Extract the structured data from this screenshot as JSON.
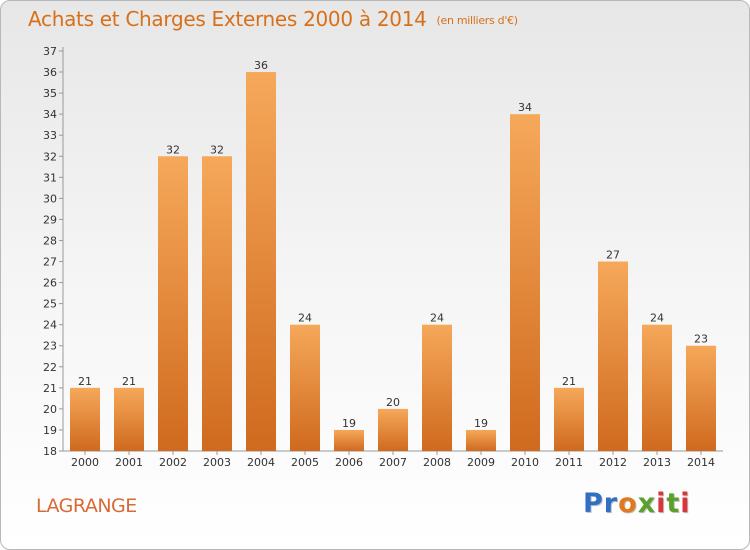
{
  "title": "Achats et Charges Externes 2000 à 2014",
  "unit_note": "(en milliers d'€)",
  "commune": "LAGRANGE",
  "logo": {
    "text": "Proxiti",
    "letters": [
      {
        "ch": "P",
        "color": "#2f6fc4"
      },
      {
        "ch": "r",
        "color": "#2f6fc4"
      },
      {
        "ch": "o",
        "color": "#e07a1e"
      },
      {
        "ch": "x",
        "color": "#5aa02c"
      },
      {
        "ch": "i",
        "color": "#d9353a"
      },
      {
        "ch": "t",
        "color": "#5aa02c"
      },
      {
        "ch": "i",
        "color": "#d9353a"
      }
    ]
  },
  "colors": {
    "bar_top": "#f6a85a",
    "bar_bottom": "#cf6a1e",
    "title": "#d8701a",
    "text": "#333333"
  },
  "chart_data": {
    "type": "bar",
    "title": "Achats et Charges Externes 2000 à 2014",
    "xlabel": "",
    "ylabel": "",
    "categories": [
      "2000",
      "2001",
      "2002",
      "2003",
      "2004",
      "2005",
      "2006",
      "2007",
      "2008",
      "2009",
      "2010",
      "2011",
      "2012",
      "2013",
      "2014"
    ],
    "values": [
      21,
      21,
      32,
      32,
      36,
      24,
      19,
      20,
      24,
      19,
      34,
      21,
      27,
      24,
      23
    ],
    "ylim": [
      18,
      37
    ],
    "yticks": [
      18,
      19,
      20,
      21,
      22,
      23,
      24,
      25,
      26,
      27,
      28,
      29,
      30,
      31,
      32,
      33,
      34,
      35,
      36,
      37
    ],
    "grid": false,
    "data_labels": true
  }
}
